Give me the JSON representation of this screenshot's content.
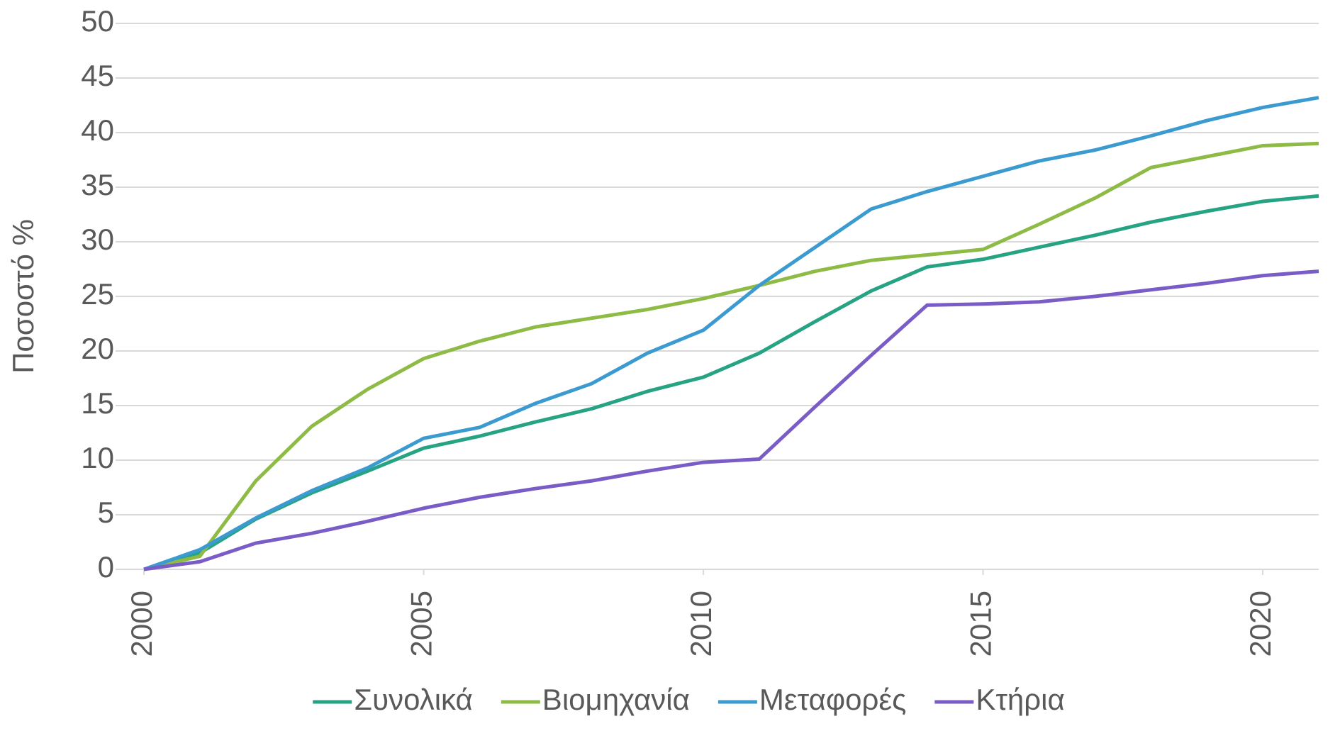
{
  "chart_data": {
    "type": "line",
    "ylabel": "Ποσοστό %",
    "x": [
      2000,
      2001,
      2002,
      2003,
      2004,
      2005,
      2006,
      2007,
      2008,
      2009,
      2010,
      2011,
      2012,
      2013,
      2014,
      2015,
      2016,
      2017,
      2018,
      2019,
      2020,
      2021
    ],
    "series": [
      {
        "name": "Συνολικά",
        "color": "#26a383",
        "values": [
          0,
          1.5,
          4.6,
          7,
          9,
          11.1,
          12.2,
          13.5,
          14.7,
          16.3,
          17.6,
          19.8,
          22.7,
          25.5,
          27.7,
          28.4,
          29.5,
          30.6,
          31.8,
          32.8,
          33.7,
          34.2
        ]
      },
      {
        "name": "Βιομηχανία",
        "color": "#8dbb45",
        "values": [
          0,
          1.2,
          8.1,
          13.1,
          16.5,
          19.3,
          20.9,
          22.2,
          23,
          23.8,
          24.8,
          26,
          27.3,
          28.3,
          28.8,
          29.3,
          31.6,
          34,
          36.8,
          37.8,
          38.8,
          39
        ]
      },
      {
        "name": "Μεταφορές",
        "color": "#3b9bd0",
        "values": [
          0,
          1.8,
          4.7,
          7.2,
          9.3,
          12,
          13,
          15.2,
          17,
          19.8,
          21.9,
          26,
          29.5,
          33,
          34.6,
          36,
          37.4,
          38.4,
          39.7,
          41.1,
          42.3,
          43.2
        ]
      },
      {
        "name": "Κτήρια",
        "color": "#7a5cc6",
        "values": [
          0,
          0.7,
          2.4,
          3.3,
          4.4,
          5.6,
          6.6,
          7.4,
          8.1,
          9,
          9.8,
          10.1,
          14.9,
          19.6,
          24.2,
          24.3,
          24.5,
          25,
          25.6,
          26.2,
          26.9,
          27.3
        ]
      }
    ],
    "xlim": [
      2000,
      2021
    ],
    "xticks": [
      2000,
      2005,
      2010,
      2015,
      2020
    ],
    "ylim": [
      0,
      50
    ],
    "yticks": [
      0,
      5,
      10,
      15,
      20,
      25,
      30,
      35,
      40,
      45,
      50
    ],
    "grid": true,
    "legend": "bottom"
  }
}
